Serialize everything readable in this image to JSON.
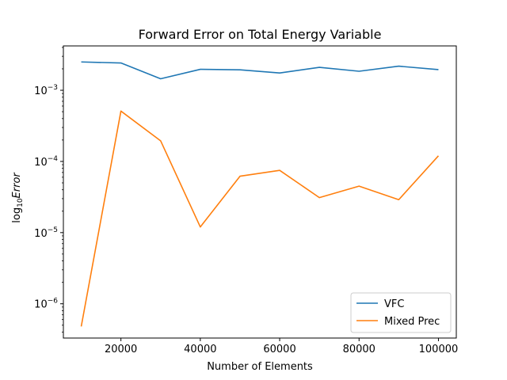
{
  "chart_data": {
    "type": "line",
    "title": "Forward Error on Total Energy Variable",
    "xlabel": "Number of Elements",
    "ylabel_prefix": "log",
    "ylabel_subscript": "10",
    "ylabel_italic": "Error",
    "x": [
      10000,
      20000,
      30000,
      40000,
      50000,
      60000,
      70000,
      80000,
      90000,
      100000
    ],
    "xlim": [
      5500,
      104500
    ],
    "ylim": [
      3.3e-07,
      0.0042
    ],
    "yscale": "log",
    "x_ticks": [
      {
        "value": 20000,
        "label": "20000"
      },
      {
        "value": 40000,
        "label": "40000"
      },
      {
        "value": 60000,
        "label": "60000"
      },
      {
        "value": 80000,
        "label": "80000"
      },
      {
        "value": 100000,
        "label": "100000"
      }
    ],
    "y_ticks": [
      {
        "exp": -6,
        "base": "10",
        "sup": "−6"
      },
      {
        "exp": -5,
        "base": "10",
        "sup": "−5"
      },
      {
        "exp": -4,
        "base": "10",
        "sup": "−4"
      },
      {
        "exp": -3,
        "base": "10",
        "sup": "−3"
      }
    ],
    "series": [
      {
        "name": "VFC",
        "color": "#1f77b4",
        "values": [
          0.0025,
          0.00242,
          0.00145,
          0.00197,
          0.00194,
          0.00175,
          0.0021,
          0.00185,
          0.00218,
          0.00195
        ]
      },
      {
        "name": "Mixed Prec",
        "color": "#ff7f0e",
        "values": [
          4.8e-07,
          0.00051,
          0.000195,
          1.2e-05,
          6.2e-05,
          7.5e-05,
          3.1e-05,
          4.5e-05,
          2.9e-05,
          0.00012
        ]
      }
    ],
    "legend_position": "lower-right",
    "grid": false
  }
}
